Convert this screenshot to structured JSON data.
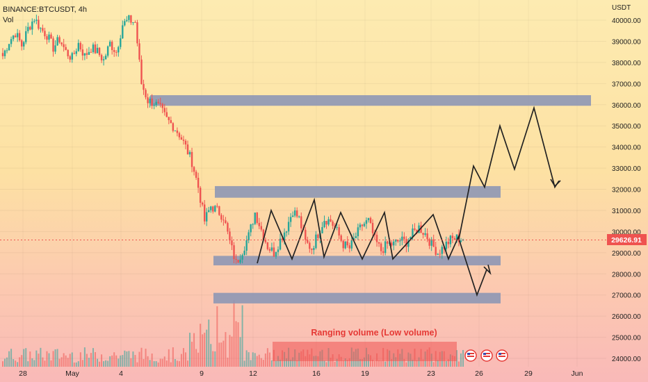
{
  "header": {
    "symbol": "BINANCE:BTCUSDT, 4h",
    "volume_label": "Vol"
  },
  "price_axis": {
    "currency": "USDT",
    "ticks": [
      "40000.00",
      "39000.00",
      "38000.00",
      "37000.00",
      "36000.00",
      "35000.00",
      "34000.00",
      "33000.00",
      "32000.00",
      "31000.00",
      "30000.00",
      "29000.00",
      "28000.00",
      "27000.00",
      "26000.00",
      "25000.00",
      "24000.00"
    ],
    "last_price": "29626.91"
  },
  "time_axis": {
    "ticks": [
      "28",
      "May",
      "4",
      "9",
      "12",
      "16",
      "19",
      "23",
      "26",
      "29",
      "Jun"
    ]
  },
  "annotation": {
    "text": "Ranging volume (Low volume)"
  },
  "colors": {
    "up": "#26a69a",
    "down": "#ef5350",
    "zone": "#8e97b5",
    "label_red": "#e53935",
    "price_tag": "#ef5350",
    "drawing": "#222222"
  },
  "chart_data": {
    "type": "candlestick",
    "title": "BINANCE:BTCUSDT, 4h",
    "ylabel": "USDT",
    "ylim": [
      23800,
      40800
    ],
    "last_price": 29626.91,
    "zones": [
      {
        "low": 35950,
        "high": 36450
      },
      {
        "low": 31600,
        "high": 32150
      },
      {
        "low": 28400,
        "high": 28850
      },
      {
        "low": 26600,
        "high": 27100
      }
    ],
    "close_path": [
      38300,
      39000,
      39400,
      38800,
      39600,
      40100,
      39600,
      39300,
      38700,
      39100,
      38500,
      38200,
      38900,
      38300,
      38700,
      38500,
      38100,
      38900,
      38500,
      39800,
      40000,
      39900,
      37000,
      36200,
      36100,
      35800,
      35300,
      35000,
      34600,
      34000,
      33300,
      32100,
      30500,
      31200,
      31000,
      30700,
      29500,
      28500,
      29100,
      29800,
      30900,
      30100,
      29300,
      29000,
      29600,
      30200,
      31000,
      30600,
      29500,
      29200,
      29900,
      30600,
      30500,
      30000,
      29400,
      29200,
      29800,
      30300,
      30500,
      29600,
      29100,
      29400,
      29400,
      29600,
      29500,
      29900,
      30200,
      29900,
      29400,
      29000,
      29300,
      29600,
      29700,
      29626.91
    ],
    "projections": [
      {
        "name": "bullish",
        "points": [
          [
            0,
            29650
          ],
          [
            4,
            33100
          ],
          [
            7,
            32100
          ],
          [
            10,
            35000
          ],
          [
            13,
            32950
          ],
          [
            16,
            35850
          ],
          [
            20,
            32100
          ],
          [
            21,
            32400
          ]
        ]
      },
      {
        "name": "bearish",
        "points": [
          [
            0,
            29650
          ],
          [
            5,
            27000
          ],
          [
            8,
            28200
          ],
          [
            8.6,
            28000
          ],
          [
            9,
            28300
          ]
        ]
      }
    ],
    "range_zigzag": [
      [
        0,
        28500
      ],
      [
        1,
        31000
      ],
      [
        2,
        28700
      ],
      [
        3,
        31500
      ],
      [
        4,
        28800
      ],
      [
        5,
        30900
      ],
      [
        6,
        28700
      ],
      [
        7,
        30900
      ],
      [
        8,
        28700
      ],
      [
        9,
        30800
      ],
      [
        10,
        28700
      ],
      [
        11,
        29800
      ]
    ]
  }
}
